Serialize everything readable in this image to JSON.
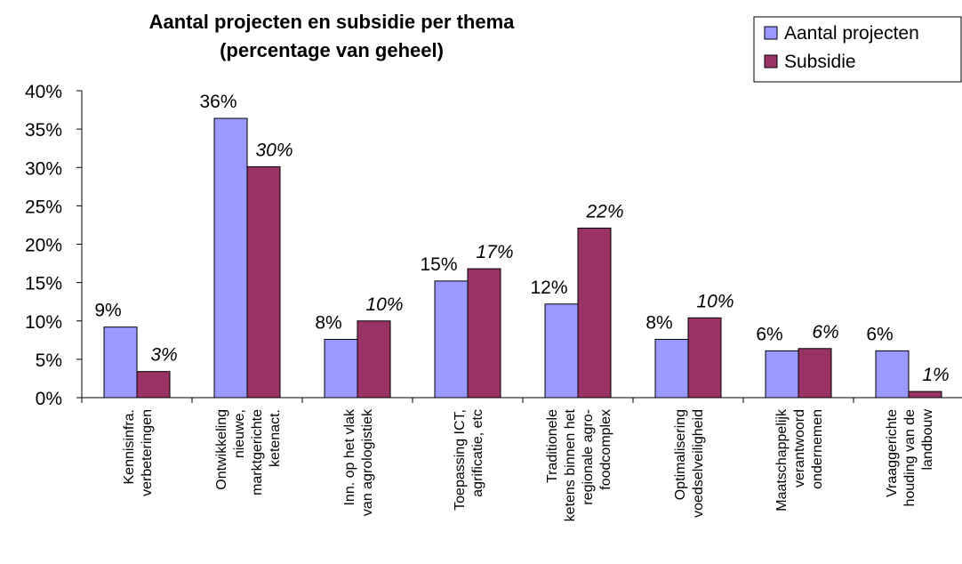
{
  "chart_data": {
    "type": "bar",
    "title": [
      "Aantal projecten en subsidie per thema",
      "(percentage van geheel)"
    ],
    "categories": [
      [
        "Kennisinfra.",
        "verbeteringen"
      ],
      [
        "Ontwikkeling",
        "nieuwe,",
        "marktgerichte",
        "ketenact."
      ],
      [
        "Inn. op het vlak",
        "van agrologistiek"
      ],
      [
        "Toepassing ICT,",
        "agrificatie, etc"
      ],
      [
        "Traditionele",
        "ketens binnen het",
        "regionale agro-",
        "foodcomplex"
      ],
      [
        "Optimalisering",
        "voedselveiligheid"
      ],
      [
        "Maatschappelijk",
        "verantwoord",
        "ondernemen"
      ],
      [
        "Vraaggerichte",
        "houding van de",
        "landbouw"
      ]
    ],
    "series": [
      {
        "name": "Aantal projecten",
        "color": "#9999ff",
        "italic": false,
        "values": [
          9.2,
          36.4,
          7.6,
          15.2,
          12.2,
          7.6,
          6.1,
          6.1
        ],
        "value_labels": [
          "9%",
          "36%",
          "8%",
          "15%",
          "12%",
          "8%",
          "6%",
          "6%"
        ]
      },
      {
        "name": "Subsidie",
        "color": "#993366",
        "italic": true,
        "values": [
          3.4,
          30.1,
          10.0,
          16.8,
          22.1,
          10.4,
          6.4,
          0.8
        ],
        "value_labels": [
          "3%",
          "30%",
          "10%",
          "17%",
          "22%",
          "10%",
          "6%",
          "1%"
        ]
      }
    ],
    "ylim": [
      0,
      40
    ],
    "yticks": [
      {
        "value": 0,
        "label": "0%"
      },
      {
        "value": 5,
        "label": "5%"
      },
      {
        "value": 10,
        "label": "10%"
      },
      {
        "value": 15,
        "label": "15%"
      },
      {
        "value": 20,
        "label": "20%"
      },
      {
        "value": 25,
        "label": "25%"
      },
      {
        "value": 30,
        "label": "30%"
      },
      {
        "value": 35,
        "label": "35%"
      },
      {
        "value": 40,
        "label": "40%"
      }
    ],
    "legend": "top-right"
  }
}
